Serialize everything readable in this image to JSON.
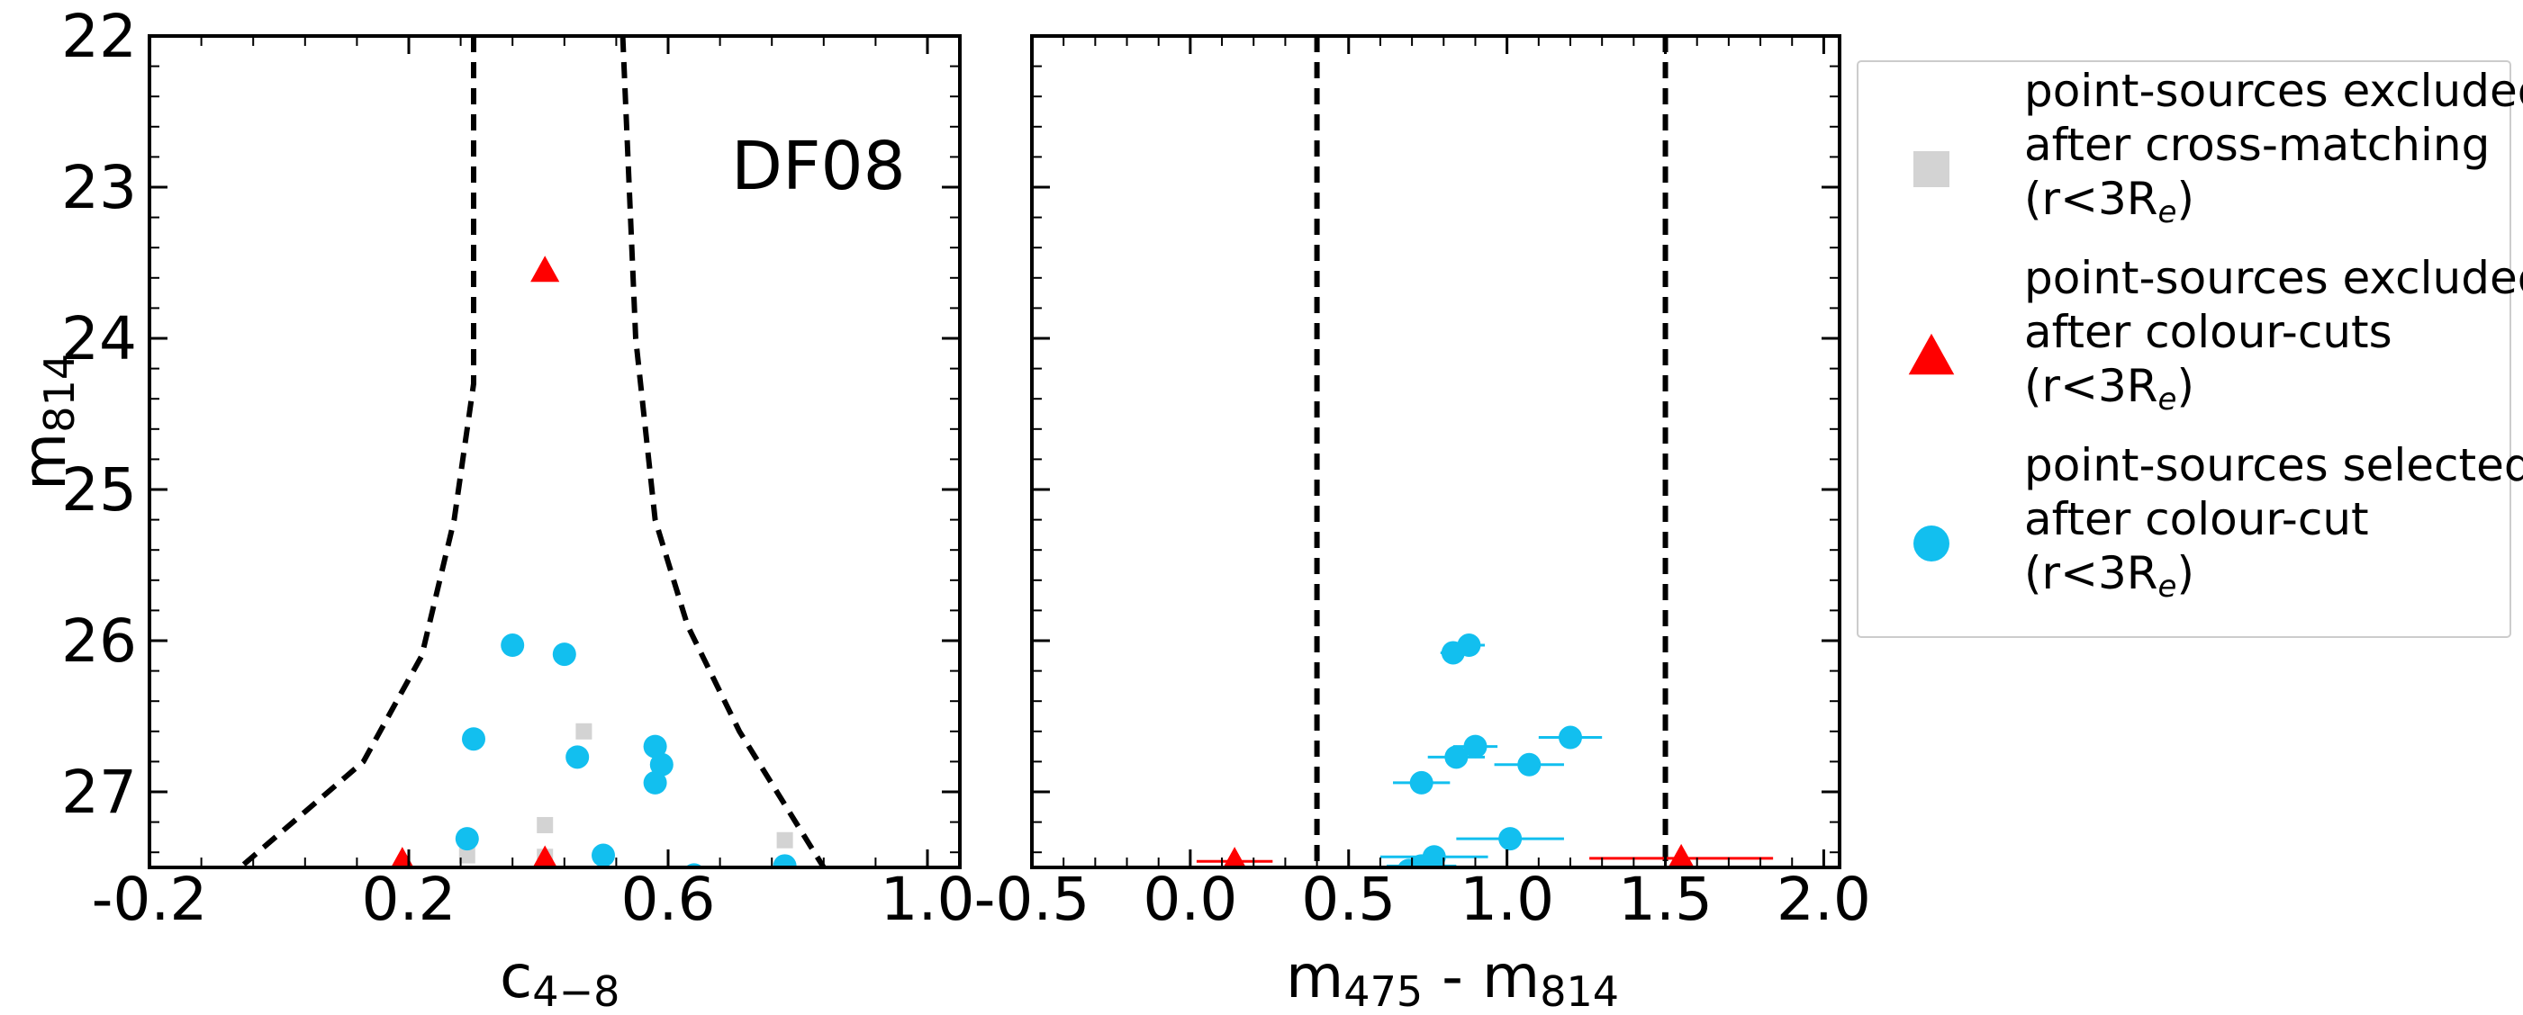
{
  "chart_data": [
    {
      "type": "scatter",
      "panel": "left",
      "annotation": "DF08",
      "xlabel": "c",
      "xlabel_sub": "4−8",
      "ylabel": "m",
      "ylabel_sub": "814",
      "xlim": [
        -0.2,
        1.05
      ],
      "ylim": [
        27.5,
        22.0
      ],
      "y_inverted": true,
      "xticks": [
        -0.2,
        0.2,
        0.6,
        1.0
      ],
      "xtick_labels": [
        "-0.2",
        "0.2",
        "0.6",
        "1.0"
      ],
      "yticks": [
        22,
        23,
        24,
        25,
        26,
        27
      ],
      "ytick_labels": [
        "22",
        "23",
        "24",
        "25",
        "26",
        "27"
      ],
      "series": [
        {
          "key": "excluded_crossmatch",
          "marker": "square",
          "color": "#d3d3d3",
          "points": [
            [
              0.47,
              26.6
            ],
            [
              0.41,
              27.22
            ],
            [
              0.78,
              27.32
            ],
            [
              0.29,
              27.42
            ],
            [
              0.41,
              27.43
            ]
          ]
        },
        {
          "key": "excluded_colour",
          "marker": "triangle",
          "color": "#ff0000",
          "points": [
            [
              0.41,
              23.55
            ],
            [
              0.19,
              27.46
            ],
            [
              0.41,
              27.45
            ]
          ]
        },
        {
          "key": "selected",
          "marker": "circle",
          "color": "#12bfef",
          "points": [
            [
              0.36,
              26.03
            ],
            [
              0.44,
              26.09
            ],
            [
              0.3,
              26.65
            ],
            [
              0.46,
              26.77
            ],
            [
              0.58,
              26.7
            ],
            [
              0.59,
              26.82
            ],
            [
              0.58,
              26.94
            ],
            [
              0.29,
              27.31
            ],
            [
              0.5,
              27.42
            ],
            [
              0.78,
              27.49
            ],
            [
              0.64,
              27.55
            ]
          ]
        }
      ],
      "curves": [
        {
          "style": "dashed",
          "color": "#000000",
          "points": [
            [
              0.3,
              22.0
            ],
            [
              0.3,
              24.3
            ],
            [
              0.27,
              25.2
            ],
            [
              0.22,
              26.1
            ],
            [
              0.13,
              26.8
            ],
            [
              -0.06,
              27.5
            ]
          ]
        },
        {
          "style": "dashed",
          "color": "#000000",
          "points": [
            [
              0.53,
              22.0
            ],
            [
              0.55,
              24.0
            ],
            [
              0.58,
              25.2
            ],
            [
              0.63,
              25.9
            ],
            [
              0.71,
              26.6
            ],
            [
              0.84,
              27.5
            ]
          ]
        }
      ]
    },
    {
      "type": "scatter",
      "panel": "right",
      "xlabel": "m",
      "xlabel_sub1": "475",
      "xlabel_mid": " - m",
      "xlabel_sub2": "814",
      "xlim": [
        -0.5,
        2.05
      ],
      "ylim": [
        27.5,
        22.0
      ],
      "y_inverted": true,
      "xticks": [
        -0.5,
        0.0,
        0.5,
        1.0,
        1.5,
        2.0
      ],
      "xtick_labels": [
        "-0.5",
        "0.0",
        "0.5",
        "1.0",
        "1.5",
        "2.0"
      ],
      "yticks": [
        22,
        23,
        24,
        25,
        26,
        27
      ],
      "vlines": [
        0.4,
        1.5
      ],
      "series": [
        {
          "key": "excluded_colour",
          "marker": "triangle",
          "color": "#ff0000",
          "points": [
            [
              0.14,
              27.46,
              0.12
            ],
            [
              1.55,
              27.44,
              0.29
            ]
          ]
        },
        {
          "key": "selected",
          "marker": "circle",
          "color": "#12bfef",
          "points": [
            [
              0.88,
              26.03,
              0.05
            ],
            [
              0.83,
              26.08,
              0.04
            ],
            [
              1.2,
              26.64,
              0.1
            ],
            [
              0.9,
              26.7,
              0.07
            ],
            [
              0.84,
              26.77,
              0.09
            ],
            [
              1.07,
              26.82,
              0.11
            ],
            [
              0.73,
              26.94,
              0.09
            ],
            [
              1.01,
              27.31,
              0.17
            ],
            [
              0.77,
              27.43,
              0.17
            ],
            [
              0.73,
              27.49,
              0.11
            ],
            [
              0.69,
              27.52,
              0.14
            ]
          ]
        }
      ]
    }
  ],
  "legend": {
    "placement": "right",
    "entries": [
      {
        "marker": "square",
        "color": "#d3d3d3",
        "lines": [
          "point-sources excluded",
          "after cross-matching"
        ],
        "r_main": "(r<3R",
        "r_sub": "e",
        "r_close": ")"
      },
      {
        "marker": "triangle",
        "color": "#ff0000",
        "lines": [
          "point-sources excluded",
          "after colour-cuts"
        ],
        "r_main": "(r<3R",
        "r_sub": "e",
        "r_close": ")"
      },
      {
        "marker": "circle",
        "color": "#12bfef",
        "lines": [
          "point-sources selected",
          "after colour-cut"
        ],
        "r_main": "(r<3R",
        "r_sub": "e",
        "r_close": ")"
      }
    ]
  }
}
